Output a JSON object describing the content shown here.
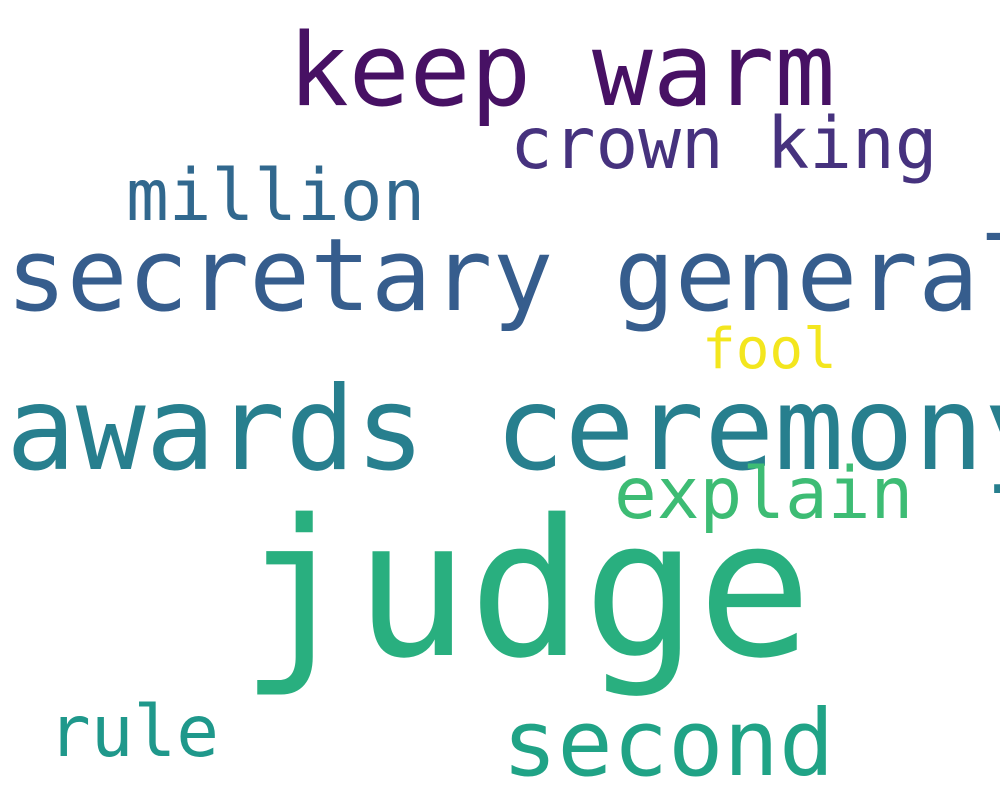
{
  "words": [
    {
      "text": "keep warm",
      "color": "#471164"
    },
    {
      "text": "crown king",
      "color": "#46327e"
    },
    {
      "text": "million",
      "color": "#31688e"
    },
    {
      "text": "secretary general",
      "color": "#365d8d"
    },
    {
      "text": "fool",
      "color": "#f3e61e"
    },
    {
      "text": "awards ceremony",
      "color": "#277f8e"
    },
    {
      "text": "explain",
      "color": "#3dbc74"
    },
    {
      "text": "judge",
      "color": "#29af7f"
    },
    {
      "text": "rule",
      "color": "#1f988b"
    },
    {
      "text": "second",
      "color": "#20a386"
    }
  ]
}
